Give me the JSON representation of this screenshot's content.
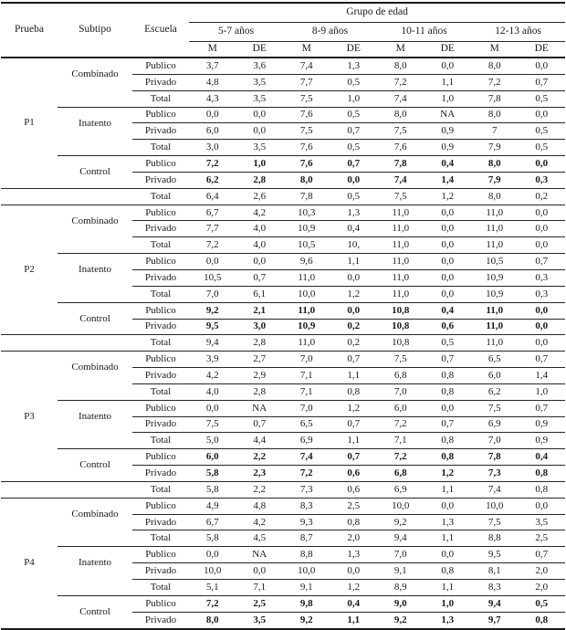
{
  "chart_data": {
    "type": "table",
    "title": "",
    "header": {
      "prueba": "Prueba",
      "subtipo": "Subtipo",
      "escuela": "Escuela",
      "group_title": "Grupo de edad",
      "age_groups": [
        "5-7 años",
        "8-9 años",
        "10-11 años",
        "12-13 años"
      ],
      "stats": [
        "M",
        "DE"
      ]
    },
    "groups": [
      {
        "prueba": "P1",
        "subtipos": [
          {
            "label": "Combinado",
            "bold": false,
            "rows": [
              {
                "escuela": "Publico",
                "values": [
                  "3,7",
                  "3,6",
                  "7,4",
                  "1,3",
                  "8,0",
                  "0,0",
                  "8,0",
                  "0,0"
                ]
              },
              {
                "escuela": "Privado",
                "values": [
                  "4,8",
                  "3,5",
                  "7,7",
                  "0,5",
                  "7,2",
                  "1,1",
                  "7,2",
                  "0,7"
                ]
              }
            ],
            "total": {
              "escuela": "Total",
              "values": [
                "4,3",
                "3,5",
                "7,5",
                "1,0",
                "7,4",
                "1,0",
                "7,8",
                "0,5"
              ]
            }
          },
          {
            "label": "Inatento",
            "bold": false,
            "rows": [
              {
                "escuela": "Publico",
                "values": [
                  "0,0",
                  "0,0",
                  "7,6",
                  "0,5",
                  "8,0",
                  "NA",
                  "8,0",
                  "0,0"
                ]
              },
              {
                "escuela": "Privado",
                "values": [
                  "6,0",
                  "0,0",
                  "7,5",
                  "0,7",
                  "7,5",
                  "0,9",
                  "7",
                  "0,5"
                ]
              }
            ],
            "total": {
              "escuela": "Total",
              "values": [
                "3,0",
                "3,5",
                "7,6",
                "0,5",
                "7,6",
                "0,9",
                "7,9",
                "0,5"
              ]
            }
          },
          {
            "label": "Control",
            "bold": true,
            "rows": [
              {
                "escuela": "Publico",
                "values": [
                  "7,2",
                  "1,0",
                  "7,6",
                  "0,7",
                  "7,8",
                  "0,4",
                  "8,0",
                  "0,0"
                ]
              },
              {
                "escuela": "Privado",
                "values": [
                  "6,2",
                  "2,8",
                  "8,0",
                  "0,0",
                  "7,4",
                  "1,4",
                  "7,9",
                  "0,3"
                ]
              }
            ],
            "total": {
              "escuela": "Total",
              "values": [
                "6,4",
                "2,6",
                "7,8",
                "0,5",
                "7,5",
                "1,2",
                "8,0",
                "0,2"
              ]
            }
          }
        ]
      },
      {
        "prueba": "P2",
        "subtipos": [
          {
            "label": "Combinado",
            "bold": false,
            "rows": [
              {
                "escuela": "Publico",
                "values": [
                  "6,7",
                  "4,2",
                  "10,3",
                  "1,3",
                  "11,0",
                  "0,0",
                  "11,0",
                  "0,0"
                ]
              },
              {
                "escuela": "Privado",
                "values": [
                  "7,7",
                  "4,0",
                  "10,9",
                  "0,4",
                  "11,0",
                  "0,0",
                  "11,0",
                  "0,0"
                ]
              }
            ],
            "total": {
              "escuela": "Total",
              "values": [
                "7,2",
                "4,0",
                "10,5",
                "10,",
                "11,0",
                "0,0",
                "11,0",
                "0,0"
              ]
            }
          },
          {
            "label": "Inatento",
            "bold": false,
            "rows": [
              {
                "escuela": "Publico",
                "values": [
                  "0,0",
                  "0,0",
                  "9,6",
                  "1,1",
                  "11,0",
                  "0,0",
                  "10,5",
                  "0,7"
                ]
              },
              {
                "escuela": "Privado",
                "values": [
                  "10,5",
                  "0,7",
                  "11,0",
                  "0,0",
                  "11,0",
                  "0,0",
                  "10,9",
                  "0,3"
                ]
              }
            ],
            "total": {
              "escuela": "Total",
              "values": [
                "7,0",
                "6,1",
                "10,0",
                "1,2",
                "11,0",
                "0,0",
                "10,9",
                "0,3"
              ]
            }
          },
          {
            "label": "Control",
            "bold": true,
            "rows": [
              {
                "escuela": "Publico",
                "values": [
                  "9,2",
                  "2,1",
                  "11,0",
                  "0,0",
                  "10,8",
                  "0,4",
                  "11,0",
                  "0,0"
                ]
              },
              {
                "escuela": "Privado",
                "values": [
                  "9,5",
                  "3,0",
                  "10,9",
                  "0,2",
                  "10,8",
                  "0,6",
                  "11,0",
                  "0,0"
                ]
              }
            ],
            "total": {
              "escuela": "Total",
              "values": [
                "9,4",
                "2,8",
                "11,0",
                "0,2",
                "10,8",
                "0,5",
                "11,0",
                "0,0"
              ]
            }
          }
        ]
      },
      {
        "prueba": "P3",
        "subtipos": [
          {
            "label": "Combinado",
            "bold": false,
            "rows": [
              {
                "escuela": "Publico",
                "values": [
                  "3,9",
                  "2,7",
                  "7,0",
                  "0,7",
                  "7,5",
                  "0,7",
                  "6,5",
                  "0,7"
                ]
              },
              {
                "escuela": "Privado",
                "values": [
                  "4,2",
                  "2,9",
                  "7,1",
                  "1,1",
                  "6,8",
                  "0,8",
                  "6,0",
                  "1,4"
                ]
              }
            ],
            "total": {
              "escuela": "Total",
              "values": [
                "4,0",
                "2,8",
                "7,1",
                "0,8",
                "7,0",
                "0,8",
                "6,2",
                "1,0"
              ]
            }
          },
          {
            "label": "Inatento",
            "bold": false,
            "rows": [
              {
                "escuela": "Publico",
                "values": [
                  "0,0",
                  "NA",
                  "7,0",
                  "1,2",
                  "6,0",
                  "0,0",
                  "7,5",
                  "0,7"
                ]
              },
              {
                "escuela": "Privado",
                "values": [
                  "7,5",
                  "0,7",
                  "6,5",
                  "0,7",
                  "7,2",
                  "0,7",
                  "6,9",
                  "0,9"
                ]
              }
            ],
            "total": {
              "escuela": "Total",
              "values": [
                "5,0",
                "4,4",
                "6,9",
                "1,1",
                "7,1",
                "0,8",
                "7,0",
                "0,9"
              ]
            }
          },
          {
            "label": "Control",
            "bold": true,
            "rows": [
              {
                "escuela": "Publico",
                "values": [
                  "6,0",
                  "2,2",
                  "7,4",
                  "0,7",
                  "7,2",
                  "0,8",
                  "7,8",
                  "0,4"
                ]
              },
              {
                "escuela": "Privado",
                "values": [
                  "5,8",
                  "2,3",
                  "7,2",
                  "0,6",
                  "6,8",
                  "1,2",
                  "7,3",
                  "0,8"
                ]
              }
            ],
            "total": {
              "escuela": "Total",
              "values": [
                "5,8",
                "2,2",
                "7,3",
                "0,6",
                "6,9",
                "1,1",
                "7,4",
                "0,8"
              ]
            }
          }
        ]
      },
      {
        "prueba": "P4",
        "subtipos": [
          {
            "label": "Combinado",
            "bold": false,
            "rows": [
              {
                "escuela": "Publico",
                "values": [
                  "4,9",
                  "4,8",
                  "8,3",
                  "2,5",
                  "10,0",
                  "0,0",
                  "10,0",
                  "0,0"
                ]
              },
              {
                "escuela": "Privado",
                "values": [
                  "6,7",
                  "4,2",
                  "9,3",
                  "0,8",
                  "9,2",
                  "1,3",
                  "7,5",
                  "3,5"
                ]
              }
            ],
            "total": {
              "escuela": "Total",
              "values": [
                "5,8",
                "4,5",
                "8,7",
                "2,0",
                "9,4",
                "1,1",
                "8,8",
                "2,5"
              ]
            }
          },
          {
            "label": "Inatento",
            "bold": false,
            "rows": [
              {
                "escuela": "Publico",
                "values": [
                  "0,0",
                  "NA",
                  "8,8",
                  "1,3",
                  "7,0",
                  "0,0",
                  "9,5",
                  "0,7"
                ]
              },
              {
                "escuela": "Privado",
                "values": [
                  "10,0",
                  "0,0",
                  "10,0",
                  "0,0",
                  "9,1",
                  "0,8",
                  "8,1",
                  "2,0"
                ]
              }
            ],
            "total": {
              "escuela": "Total",
              "values": [
                "5,1",
                "7,1",
                "9,1",
                "1,2",
                "8,9",
                "1,1",
                "8,3",
                "2,0"
              ]
            }
          },
          {
            "label": "Control",
            "bold": true,
            "rows": [
              {
                "escuela": "Publico",
                "values": [
                  "7,2",
                  "2,5",
                  "9,8",
                  "0,4",
                  "9,0",
                  "1,0",
                  "9,4",
                  "0,5"
                ]
              },
              {
                "escuela": "Privado",
                "values": [
                  "8,0",
                  "3,5",
                  "9,2",
                  "1,1",
                  "9,2",
                  "1,3",
                  "9,7",
                  "0,8"
                ]
              }
            ],
            "total": null
          }
        ]
      }
    ]
  }
}
